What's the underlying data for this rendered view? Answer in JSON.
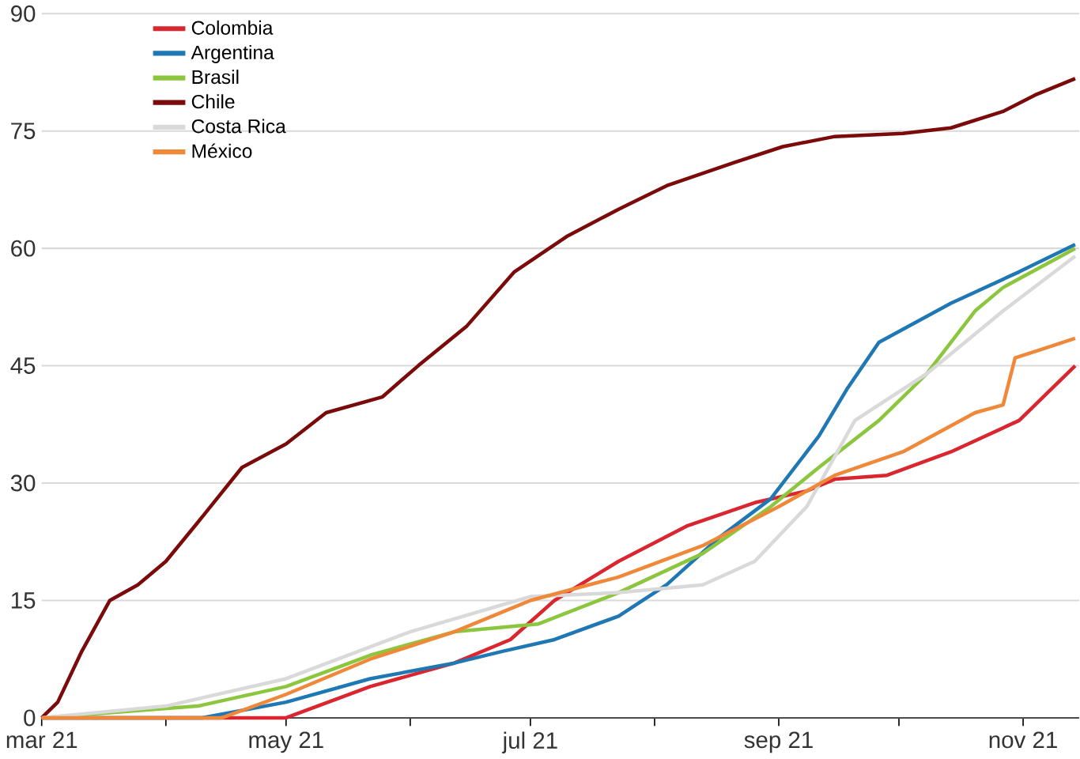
{
  "chart_data": {
    "type": "line",
    "x": [
      "2021-03-01",
      "2021-03-05",
      "2021-03-11",
      "2021-03-18",
      "2021-03-25",
      "2021-04-01",
      "2021-04-09",
      "2021-04-20",
      "2021-05-01",
      "2021-05-11",
      "2021-05-25",
      "2021-06-03",
      "2021-06-15",
      "2021-06-27",
      "2021-07-10",
      "2021-07-23",
      "2021-08-04",
      "2021-08-21",
      "2021-09-02",
      "2021-09-15",
      "2021-10-02",
      "2021-10-14",
      "2021-10-27",
      "2021-11-04",
      "2021-11-14"
    ],
    "series": [
      {
        "name": "Colombia",
        "color": "#d9262f",
        "x": [
          "2021-03-01",
          "2021-05-01",
          "2021-05-22",
          "2021-06-12",
          "2021-06-26",
          "2021-07-07",
          "2021-07-23",
          "2021-08-09",
          "2021-08-26",
          "2021-09-08",
          "2021-09-15",
          "2021-09-28",
          "2021-10-14",
          "2021-10-31",
          "2021-11-14"
        ],
        "values": [
          0,
          0,
          4,
          7,
          10,
          15,
          20,
          24.5,
          27.5,
          29,
          30.5,
          31,
          34,
          38,
          45
        ]
      },
      {
        "name": "Argentina",
        "color": "#1f77b4",
        "x": [
          "2021-03-01",
          "2021-04-10",
          "2021-05-01",
          "2021-05-22",
          "2021-06-12",
          "2021-06-24",
          "2021-07-07",
          "2021-07-23",
          "2021-08-04",
          "2021-08-17",
          "2021-08-30",
          "2021-09-11",
          "2021-09-18",
          "2021-09-26",
          "2021-10-14",
          "2021-10-31",
          "2021-11-14"
        ],
        "values": [
          0,
          0,
          2,
          5,
          7,
          8.5,
          10,
          13,
          17,
          23,
          28,
          36,
          42,
          48,
          53,
          57,
          60.5
        ]
      },
      {
        "name": "Brasil",
        "color": "#8cc63f",
        "x": [
          "2021-03-01",
          "2021-04-09",
          "2021-05-01",
          "2021-05-22",
          "2021-06-12",
          "2021-07-03",
          "2021-07-23",
          "2021-08-13",
          "2021-08-30",
          "2021-09-11",
          "2021-09-26",
          "2021-10-08",
          "2021-10-20",
          "2021-10-27",
          "2021-11-14"
        ],
        "values": [
          0,
          1.5,
          4,
          8,
          11,
          12,
          16,
          21,
          27,
          32,
          38,
          44,
          52,
          55,
          60
        ]
      },
      {
        "name": "Chile",
        "color": "#7b0a0a",
        "values": [
          0,
          2,
          8.5,
          15,
          17,
          20,
          25,
          32,
          35,
          39,
          41,
          45,
          50,
          57,
          61.5,
          65,
          68,
          71,
          73,
          74.3,
          74.7,
          75.4,
          77.5,
          79.6,
          81.7
        ]
      },
      {
        "name": "Costa Rica",
        "color": "#d9d9d9",
        "x": [
          "2021-03-01",
          "2021-04-01",
          "2021-05-01",
          "2021-06-01",
          "2021-07-01",
          "2021-07-23",
          "2021-08-13",
          "2021-08-26",
          "2021-09-08",
          "2021-09-20",
          "2021-10-08",
          "2021-10-27",
          "2021-11-14"
        ],
        "values": [
          0,
          1.5,
          5,
          11,
          15.5,
          16,
          17,
          20,
          27,
          38,
          44,
          52,
          59
        ]
      },
      {
        "name": "México",
        "color": "#f0883a",
        "x": [
          "2021-03-01",
          "2021-04-15",
          "2021-05-01",
          "2021-05-22",
          "2021-06-12",
          "2021-07-01",
          "2021-07-23",
          "2021-08-13",
          "2021-09-01",
          "2021-09-15",
          "2021-10-02",
          "2021-10-20",
          "2021-10-27",
          "2021-10-30",
          "2021-11-05",
          "2021-11-14"
        ],
        "values": [
          0,
          0,
          3,
          7.5,
          11,
          15,
          18,
          22,
          27,
          31,
          34,
          39,
          40,
          46,
          47,
          48.5
        ]
      }
    ],
    "xlim": [
      "2021-03-01",
      "2021-11-15"
    ],
    "xticks": [
      {
        "value": "2021-03-01",
        "label": "mar 21"
      },
      {
        "value": "2021-04-01",
        "label": null
      },
      {
        "value": "2021-05-01",
        "label": "may 21"
      },
      {
        "value": "2021-06-01",
        "label": null
      },
      {
        "value": "2021-07-01",
        "label": "jul 21"
      },
      {
        "value": "2021-08-01",
        "label": null
      },
      {
        "value": "2021-09-01",
        "label": "sep 21"
      },
      {
        "value": "2021-10-01",
        "label": null
      },
      {
        "value": "2021-11-01",
        "label": "nov 21"
      }
    ],
    "ylim": [
      0,
      90
    ],
    "yticks": [
      0,
      15,
      30,
      45,
      60,
      75,
      90
    ],
    "grid": "y",
    "legend": "top left"
  }
}
